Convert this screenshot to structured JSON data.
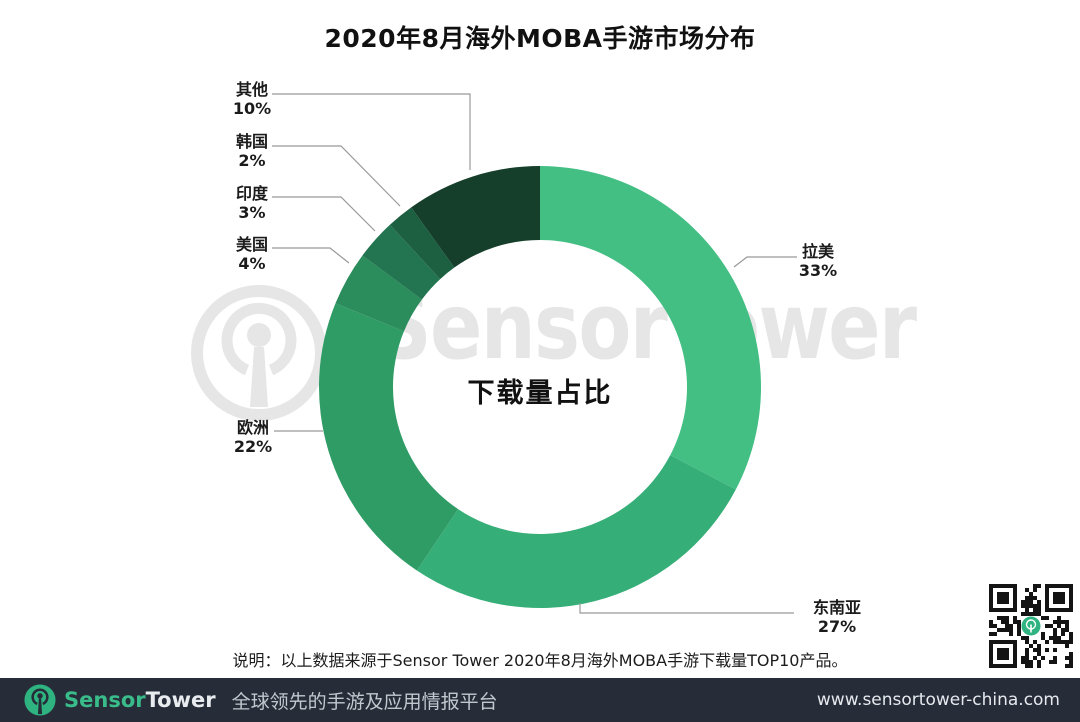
{
  "header": {
    "title": "2020年8月海外MOBA手游市场分布"
  },
  "chart_data": {
    "type": "pie",
    "subtype": "donut",
    "title": "2020年8月海外MOBA手游市场分布",
    "center_label": "下载量占比",
    "unit": "percent",
    "start_angle": "top",
    "direction": "clockwise",
    "segments": [
      {
        "label": "拉美",
        "value": 33,
        "pct_label": "33%",
        "color": "#43bf84"
      },
      {
        "label": "东南亚",
        "value": 27,
        "pct_label": "27%",
        "color": "#36ae78"
      },
      {
        "label": "欧洲",
        "value": 22,
        "pct_label": "22%",
        "color": "#2f9c66"
      },
      {
        "label": "美国",
        "value": 4,
        "pct_label": "4%",
        "color": "#2b8c5c"
      },
      {
        "label": "印度",
        "value": 3,
        "pct_label": "3%",
        "color": "#237450"
      },
      {
        "label": "韩国",
        "value": 2,
        "pct_label": "2%",
        "color": "#1c5f41"
      },
      {
        "label": "其他",
        "value": 10,
        "pct_label": "10%",
        "color": "#153f2a"
      }
    ]
  },
  "note": {
    "text": "说明：以上数据来源于Sensor Tower 2020年8月海外MOBA手游下载量TOP10产品。"
  },
  "watermark": {
    "text": "SensorTower",
    "color": "#e6e6e6"
  },
  "footer": {
    "brand_sensor": "Sensor",
    "brand_tower": "Tower",
    "tagline": "全球领先的手游及应用情报平台",
    "url": "www.sensortower-china.com",
    "bar_color": "#262c38",
    "accent_color": "#2eb381",
    "sensor_text_color": "#3abc8a",
    "tower_text_color": "#e9ecef",
    "tagline_color": "#c3c8cf",
    "url_color": "#e6e9ee"
  },
  "qr_code": {
    "center_icon": "sensortower-logo",
    "module_color": "#141414"
  }
}
